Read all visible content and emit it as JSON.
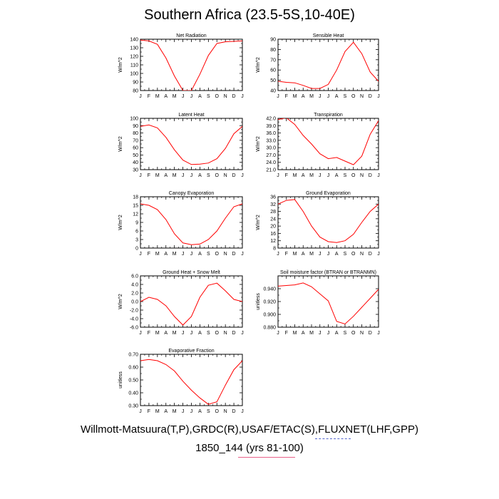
{
  "title": "Southern Africa (23.5-5S,10-40E)",
  "footer_line1": "Willmott-Matsuura(T,P),GRDC(R),USAF/ETAC(S),FLUXNET(LHF,GPP)",
  "footer_line2": "1850_144 (yrs 81-100)",
  "colors": {
    "line": "#ff0000",
    "axis": "#000000",
    "pink_rule": "#e8608a",
    "blue_rule": "#5566cc"
  },
  "chart_data": [
    {
      "type": "line",
      "title": "Net Radiation",
      "ylabel": "W/m^2",
      "categories": [
        "J",
        "F",
        "M",
        "A",
        "M",
        "J",
        "J",
        "A",
        "S",
        "O",
        "N",
        "D",
        "J"
      ],
      "ylim": [
        80,
        140
      ],
      "yticks": [
        80,
        90,
        100,
        110,
        120,
        130,
        140
      ],
      "ytick_labels": [
        "80",
        "90",
        "100",
        "110",
        "120",
        "130",
        "140"
      ],
      "values": [
        139,
        138,
        134,
        118,
        97,
        80,
        80,
        99,
        121,
        135,
        137,
        137.5,
        138
      ]
    },
    {
      "type": "line",
      "title": "Sensible Heat",
      "ylabel": "W/m^2",
      "categories": [
        "J",
        "F",
        "M",
        "A",
        "M",
        "J",
        "J",
        "A",
        "S",
        "O",
        "N",
        "D",
        "J"
      ],
      "ylim": [
        40,
        90
      ],
      "yticks": [
        40,
        50,
        60,
        70,
        80,
        90
      ],
      "ytick_labels": [
        "40",
        "50",
        "60",
        "70",
        "80",
        "90"
      ],
      "values": [
        49,
        48,
        47.5,
        45,
        42,
        42,
        46,
        60,
        78,
        87,
        76,
        58,
        49
      ]
    },
    {
      "type": "line",
      "title": "Latent Heat",
      "ylabel": "W/m^2",
      "categories": [
        "J",
        "F",
        "M",
        "A",
        "M",
        "J",
        "J",
        "A",
        "S",
        "O",
        "N",
        "D",
        "J"
      ],
      "ylim": [
        30,
        100
      ],
      "yticks": [
        30,
        40,
        50,
        60,
        70,
        80,
        90,
        100
      ],
      "ytick_labels": [
        "30",
        "40",
        "50",
        "60",
        "70",
        "80",
        "90",
        "100"
      ],
      "values": [
        89,
        91,
        87,
        74,
        57,
        43,
        37,
        37.5,
        39,
        45,
        59,
        79,
        89
      ]
    },
    {
      "type": "line",
      "title": "Transpiration",
      "ylabel": "W/m^2",
      "categories": [
        "J",
        "F",
        "M",
        "A",
        "M",
        "J",
        "J",
        "A",
        "S",
        "O",
        "N",
        "D",
        "J"
      ],
      "ylim": [
        21,
        42
      ],
      "yticks": [
        21,
        24,
        27,
        30,
        33,
        36,
        39,
        42
      ],
      "ytick_labels": [
        "21.0",
        "24.0",
        "27.0",
        "30.0",
        "33.0",
        "36.0",
        "39.0",
        "42.0"
      ],
      "values": [
        41.5,
        42.2,
        39.5,
        35,
        31.5,
        27.5,
        25.5,
        26,
        24.5,
        23,
        26.5,
        35.5,
        41
      ]
    },
    {
      "type": "line",
      "title": "Canopy Evaporation",
      "ylabel": "W/m^2",
      "categories": [
        "J",
        "F",
        "M",
        "A",
        "M",
        "J",
        "J",
        "A",
        "S",
        "O",
        "N",
        "D",
        "J"
      ],
      "ylim": [
        0,
        18
      ],
      "yticks": [
        0,
        3,
        6,
        9,
        12,
        15,
        18
      ],
      "ytick_labels": [
        "0",
        "3",
        "6",
        "9",
        "12",
        "15",
        "18"
      ],
      "values": [
        15.5,
        15,
        13.5,
        10,
        5,
        1.8,
        1.2,
        1.4,
        3,
        6,
        10.5,
        14.5,
        15.5
      ]
    },
    {
      "type": "line",
      "title": "Ground Evaporation",
      "ylabel": "W/m^2",
      "categories": [
        "J",
        "F",
        "M",
        "A",
        "M",
        "J",
        "J",
        "A",
        "S",
        "O",
        "N",
        "D",
        "J"
      ],
      "ylim": [
        8,
        36
      ],
      "yticks": [
        8,
        12,
        16,
        20,
        24,
        28,
        32,
        36
      ],
      "ytick_labels": [
        "8",
        "12",
        "16",
        "20",
        "24",
        "28",
        "32",
        "36"
      ],
      "values": [
        32,
        34,
        34.5,
        28,
        20,
        14,
        11.5,
        11,
        12,
        15.5,
        22,
        28,
        32
      ]
    },
    {
      "type": "line",
      "title": "Ground Heat + Snow Melt",
      "ylabel": "W/m^2",
      "categories": [
        "J",
        "F",
        "M",
        "A",
        "M",
        "J",
        "J",
        "A",
        "S",
        "O",
        "N",
        "D",
        "J"
      ],
      "ylim": [
        -6,
        6
      ],
      "yticks": [
        -6,
        -4,
        -2,
        0,
        2,
        4,
        6
      ],
      "ytick_labels": [
        "-6.0",
        "-4.0",
        "-2.0",
        "0.0",
        "2.0",
        "4.0",
        "6.0"
      ],
      "values": [
        0,
        1,
        0.5,
        -1,
        -3.5,
        -5.5,
        -3.5,
        1,
        3.8,
        4.3,
        2.5,
        0.5,
        0
      ]
    },
    {
      "type": "line",
      "title": "Soil moisture factor (BTRAN or BTRANMN)",
      "ylabel": "unitless",
      "categories": [
        "J",
        "F",
        "M",
        "A",
        "M",
        "J",
        "J",
        "A",
        "S",
        "O",
        "N",
        "D",
        "J"
      ],
      "ylim": [
        0.88,
        0.96
      ],
      "yticks": [
        0.88,
        0.9,
        0.92,
        0.94
      ],
      "ytick_labels": [
        "0.880",
        "0.900",
        "0.920",
        "0.940"
      ],
      "values": [
        0.944,
        0.945,
        0.946,
        0.949,
        0.943,
        0.932,
        0.921,
        0.889,
        0.885,
        0.897,
        0.911,
        0.925,
        0.939
      ]
    },
    {
      "type": "line",
      "title": "Evaporative Fraction",
      "ylabel": "unitless",
      "categories": [
        "J",
        "F",
        "M",
        "A",
        "M",
        "J",
        "J",
        "A",
        "S",
        "O",
        "N",
        "D",
        "J"
      ],
      "ylim": [
        0.3,
        0.7
      ],
      "yticks": [
        0.3,
        0.4,
        0.5,
        0.6,
        0.7
      ],
      "ytick_labels": [
        "0.30",
        "0.40",
        "0.50",
        "0.60",
        "0.70"
      ],
      "values": [
        0.65,
        0.66,
        0.65,
        0.62,
        0.57,
        0.49,
        0.42,
        0.36,
        0.31,
        0.33,
        0.46,
        0.58,
        0.65
      ]
    }
  ]
}
